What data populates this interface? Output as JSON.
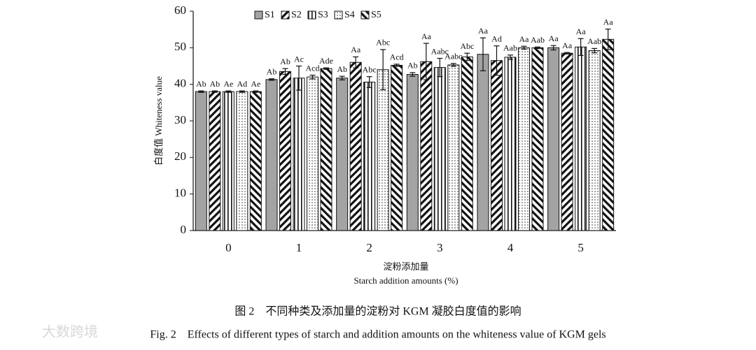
{
  "chart_data": {
    "type": "bar",
    "y_label": "白度值 Whiteness value",
    "x_label_cn": "淀粉添加量",
    "x_label": "Starch addition amounts (%)",
    "caption_cn": "图 2　不同种类及添加量的淀粉对 KGM 凝胶白度值的影响",
    "caption_en": "Fig. 2　Effects of different types of starch and addition amounts on the whiteness value of KGM gels",
    "watermark": "大数跨境",
    "categories": [
      "0",
      "1",
      "2",
      "3",
      "4",
      "5"
    ],
    "ylim": [
      0,
      60
    ],
    "yticks": [
      0,
      10,
      20,
      30,
      40,
      50,
      60
    ],
    "series": [
      {
        "name": "S1",
        "color": "#a3a3a3",
        "pattern": "solid",
        "values": [
          38,
          41.3,
          41.7,
          42.7,
          48.2,
          50
        ],
        "errors": [
          0.2,
          0.2,
          0.5,
          0.5,
          4.5,
          0.6
        ],
        "letters": [
          "Ab",
          "Ab",
          "Ab",
          "Ab",
          "Aa",
          "Aa"
        ]
      },
      {
        "name": "S2",
        "color": "#111111",
        "pattern": "diag",
        "values": [
          38,
          43.5,
          46,
          46.2,
          46.5,
          48.5
        ],
        "errors": [
          0.2,
          0.8,
          1.5,
          5,
          4,
          0.2
        ],
        "letters": [
          "Ab",
          "Ab",
          "Aa",
          "Aa",
          "Ad",
          "Aa"
        ]
      },
      {
        "name": "S3",
        "color": "#111111",
        "pattern": "vertical",
        "values": [
          38,
          41.7,
          40.6,
          44.6,
          47.4,
          50.2
        ],
        "errors": [
          0.2,
          3.3,
          1.5,
          2.5,
          0.6,
          2.3
        ],
        "letters": [
          "Ae",
          "Ac",
          "Abc",
          "Aabc",
          "Aab",
          "Aa"
        ]
      },
      {
        "name": "S4",
        "color": "#111111",
        "pattern": "dots",
        "values": [
          38,
          42,
          44,
          45.3,
          50,
          49.2
        ],
        "errors": [
          0.2,
          0.5,
          5.5,
          0.4,
          0.4,
          0.6
        ],
        "letters": [
          "Ad",
          "Acd",
          "Abc",
          "Aabc",
          "Aa",
          "Aab"
        ]
      },
      {
        "name": "S5",
        "color": "#111111",
        "pattern": "diag-back",
        "values": [
          38,
          44.3,
          45.2,
          47.5,
          50,
          52.3
        ],
        "errors": [
          0.2,
          0.2,
          0.3,
          1,
          0.2,
          2.8
        ],
        "letters": [
          "Ae",
          "Ade",
          "Acd",
          "Abc",
          "Aab",
          "Aa"
        ]
      }
    ]
  }
}
